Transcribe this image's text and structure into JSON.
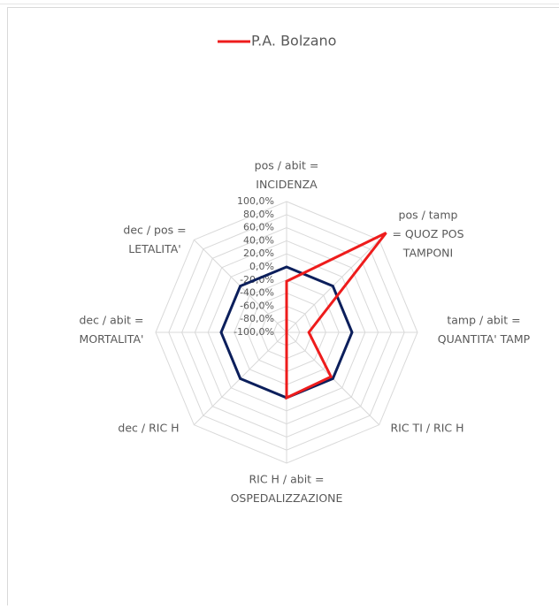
{
  "chart_data": {
    "type": "radar",
    "categories": [
      [
        "pos / abit =",
        "INCIDENZA"
      ],
      [
        "pos / tamp",
        "= QUOZ POS",
        "TAMPONI"
      ],
      [
        "tamp / abit =",
        "QUANTITA' TAMP"
      ],
      [
        "RIC TI / RIC H"
      ],
      [
        "RIC H / abit =",
        "OSPEDALIZZAZIONE"
      ],
      [
        "dec  / RIC H"
      ],
      [
        "dec / abit =",
        "MORTALITA'"
      ],
      [
        "dec / pos =",
        "LETALITA'"
      ]
    ],
    "series": [
      {
        "color": "#0c1f5c",
        "values": [
          0,
          0,
          0,
          0,
          0,
          0,
          0,
          0
        ]
      },
      {
        "name": "P.A. Bolzano",
        "color": "#ee1c1c",
        "values": [
          -22,
          115,
          -66,
          -4,
          0,
          -100,
          -100,
          -100
        ]
      }
    ],
    "ylim": [
      -100,
      100
    ],
    "yticks": [
      {
        "value": 100,
        "label": "100,0%"
      },
      {
        "value": 80,
        "label": "80,0%"
      },
      {
        "value": 60,
        "label": "60,0%"
      },
      {
        "value": 40,
        "label": "40,0%"
      },
      {
        "value": 20,
        "label": "20,0%"
      },
      {
        "value": 0,
        "label": "0,0%"
      },
      {
        "value": -20,
        "label": "-20,0%"
      },
      {
        "value": -40,
        "label": "-40,0%"
      },
      {
        "value": -60,
        "label": "-60,0%"
      },
      {
        "value": -80,
        "label": "-80,0%"
      },
      {
        "value": -100,
        "label": "-100,0%"
      }
    ],
    "grid": true,
    "legend": "top"
  }
}
